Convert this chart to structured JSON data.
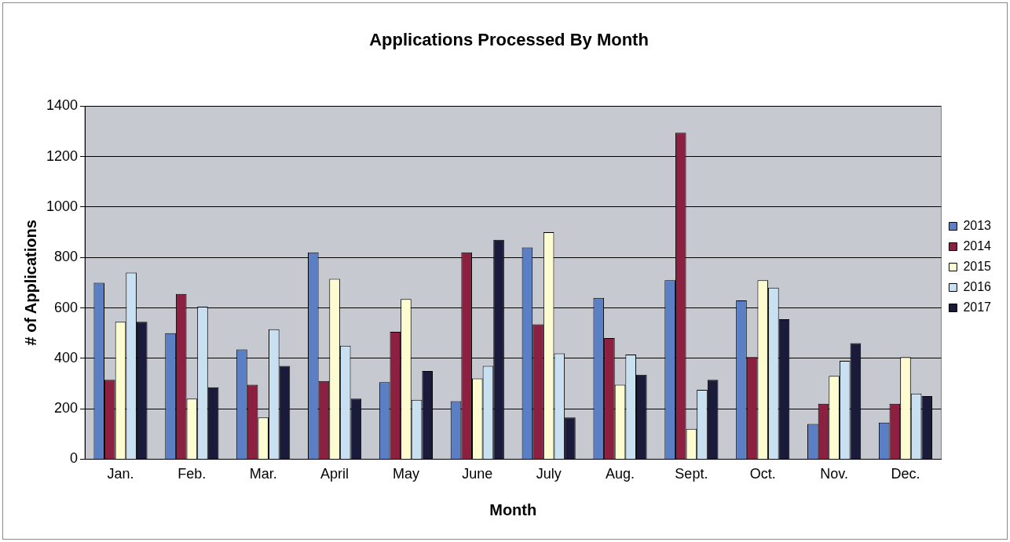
{
  "chart_data": {
    "type": "bar",
    "title": "Applications Processed By Month",
    "xlabel": "Month",
    "ylabel": "# of Applications",
    "categories": [
      "Jan.",
      "Feb.",
      "Mar.",
      "April",
      "May",
      "June",
      "July",
      "Aug.",
      "Sept.",
      "Oct.",
      "Nov.",
      "Dec."
    ],
    "series": [
      {
        "name": "2013",
        "color": "#5b7fc4",
        "values": [
          700,
          500,
          435,
          820,
          305,
          230,
          840,
          640,
          710,
          630,
          140,
          145
        ]
      },
      {
        "name": "2014",
        "color": "#8b2040",
        "values": [
          315,
          655,
          295,
          310,
          505,
          820,
          535,
          480,
          1295,
          405,
          220,
          220
        ]
      },
      {
        "name": "2015",
        "color": "#fdfbd0",
        "values": [
          545,
          240,
          165,
          715,
          635,
          320,
          900,
          295,
          120,
          710,
          330,
          405
        ]
      },
      {
        "name": "2016",
        "color": "#c8e0f0",
        "values": [
          740,
          605,
          515,
          450,
          235,
          370,
          420,
          415,
          275,
          680,
          390,
          260
        ]
      },
      {
        "name": "2017",
        "color": "#1a1a3a",
        "values": [
          545,
          285,
          370,
          240,
          350,
          870,
          165,
          335,
          315,
          555,
          460,
          250
        ]
      }
    ],
    "ylim": [
      0,
      1400
    ],
    "yticks": [
      0,
      200,
      400,
      600,
      800,
      1000,
      1200,
      1400
    ],
    "grid": "y",
    "legend": "right"
  }
}
